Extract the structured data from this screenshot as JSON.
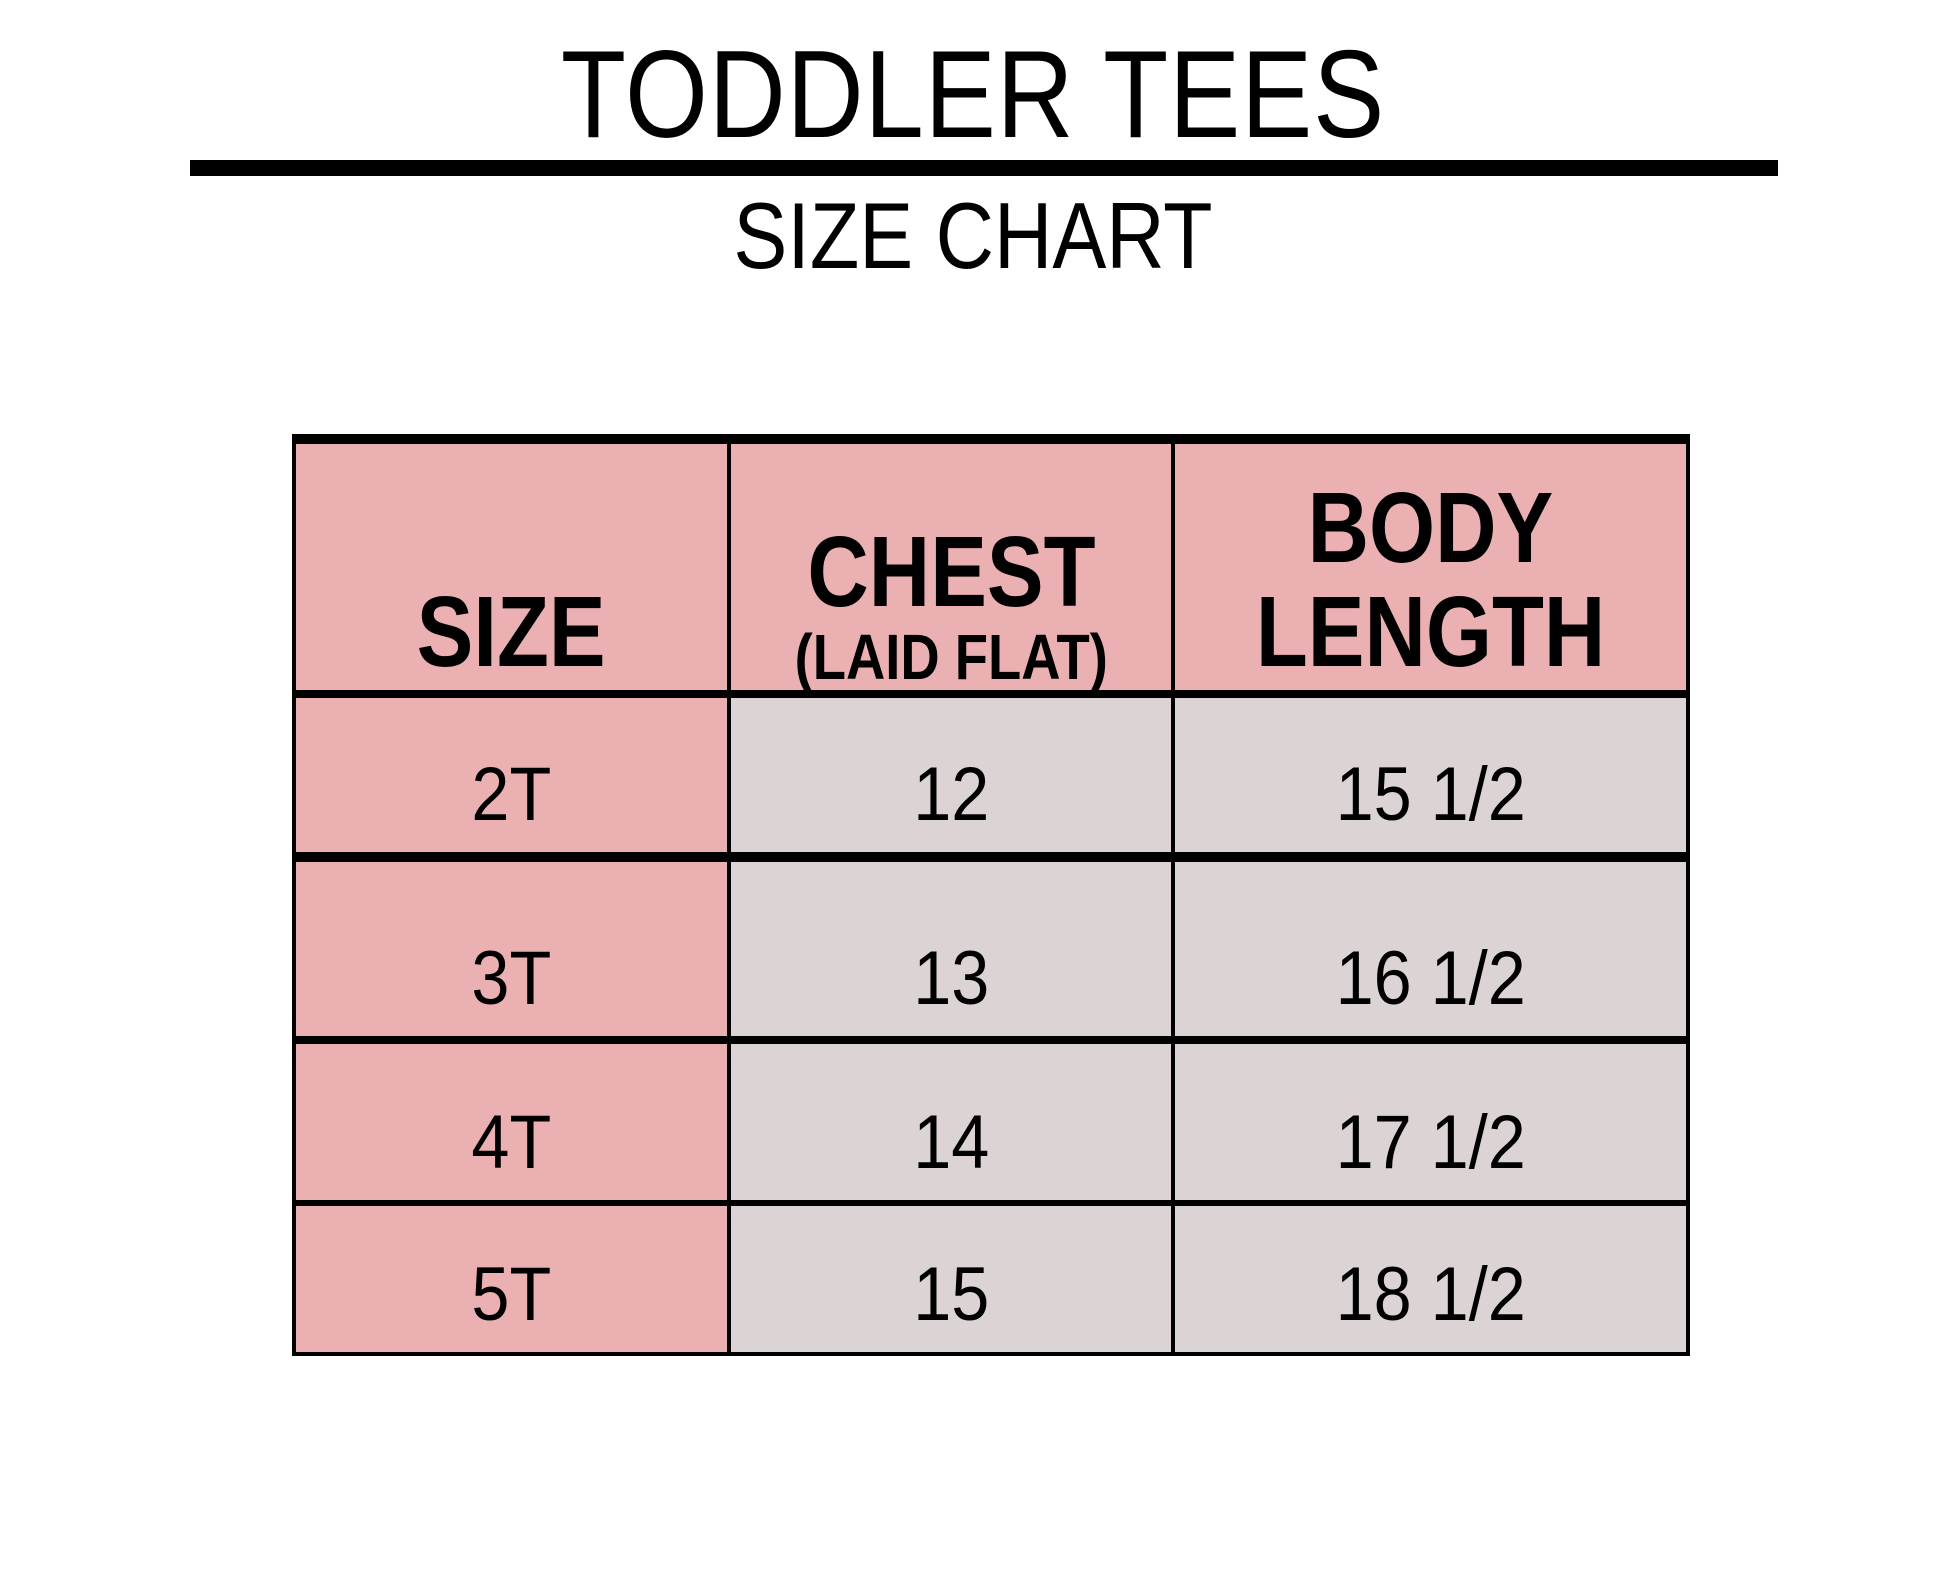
{
  "title": "TODDLER TEES",
  "subtitle": "SIZE CHART",
  "colors": {
    "header": "#ebb0b2",
    "size_column": "#ebb0b2",
    "value_cells": "#dcd3d4"
  },
  "table": {
    "headers": {
      "size": "SIZE",
      "chest": "CHEST",
      "chest_note": "(LAID FLAT)",
      "body_line1": "BODY",
      "body_line2": "LENGTH"
    },
    "rows": [
      {
        "size": "2T",
        "chest": "12",
        "body_length": "15 1/2"
      },
      {
        "size": "3T",
        "chest": "13",
        "body_length": "16 1/2"
      },
      {
        "size": "4T",
        "chest": "14",
        "body_length": "17 1/2"
      },
      {
        "size": "5T",
        "chest": "15",
        "body_length": "18 1/2"
      }
    ]
  }
}
